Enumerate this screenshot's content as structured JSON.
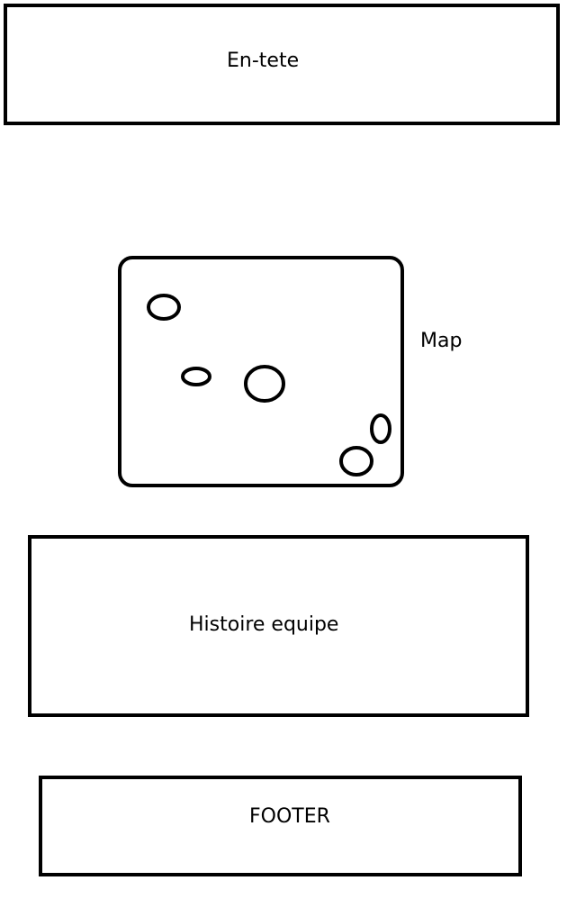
{
  "header": {
    "label": "En-tete"
  },
  "map": {
    "label": "Map",
    "markers": 5
  },
  "story": {
    "label": "Histoire equipe"
  },
  "footer": {
    "label": "FOOTER"
  },
  "colors": {
    "stroke": "#000000",
    "background": "#ffffff"
  }
}
